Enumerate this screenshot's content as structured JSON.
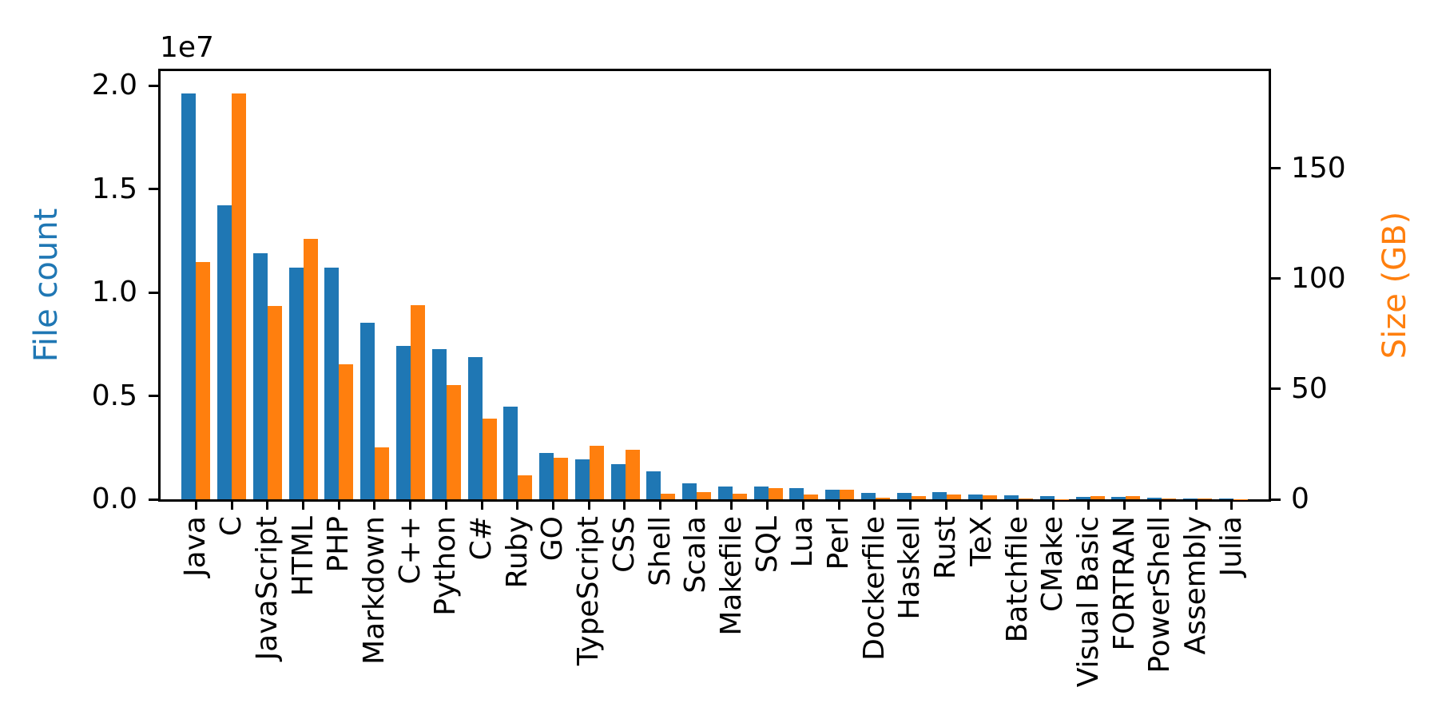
{
  "figure": {
    "background": "#ffffff"
  },
  "chart_data": {
    "type": "bar",
    "title": "",
    "grid": false,
    "legend": null,
    "categories": [
      "Java",
      "C",
      "JavaScript",
      "HTML",
      "PHP",
      "Markdown",
      "C++",
      "Python",
      "C#",
      "Ruby",
      "GO",
      "TypeScript",
      "CSS",
      "Shell",
      "Scala",
      "Makefile",
      "SQL",
      "Lua",
      "Perl",
      "Dockerfile",
      "Haskell",
      "Rust",
      "TeX",
      "Batchfile",
      "CMake",
      "Visual Basic",
      "FORTRAN",
      "PowerShell",
      "Assembly",
      "Julia"
    ],
    "series": [
      {
        "name": "File count",
        "axis": "left",
        "color": "#1f77b4",
        "unit": "files",
        "values": [
          19600000,
          14230000,
          11880000,
          11210000,
          11210000,
          8520000,
          7410000,
          7280000,
          6860000,
          4470000,
          2250000,
          1920000,
          1700000,
          1360000,
          780000,
          620000,
          600000,
          530000,
          460000,
          300000,
          310000,
          350000,
          240000,
          200000,
          150000,
          130000,
          100000,
          90000,
          40000,
          30000
        ]
      },
      {
        "name": "Size (GB)",
        "axis": "right",
        "color": "#ff7f0e",
        "unit": "GB",
        "values": [
          107.5,
          184,
          87.5,
          118,
          61,
          23.4,
          88,
          51.6,
          36.4,
          10.7,
          18.8,
          24.3,
          22.5,
          2.5,
          3.1,
          2.4,
          5.1,
          2.1,
          4.4,
          0.6,
          1.6,
          2.1,
          1.7,
          0.2,
          0.1,
          1.6,
          1.5,
          0.3,
          0.5,
          0.15
        ]
      }
    ],
    "axes": {
      "left": {
        "label": "File count",
        "color": "#1f77b4",
        "offset_text": "1e7",
        "tick_labels": [
          "0.0",
          "0.5",
          "1.0",
          "1.5",
          "2.0"
        ],
        "tick_values": [
          0,
          5000000,
          10000000,
          15000000,
          20000000
        ],
        "ylim": [
          0,
          20700000
        ]
      },
      "right": {
        "label": "Size (GB)",
        "color": "#ff7f0e",
        "tick_labels": [
          "0",
          "50",
          "100",
          "150"
        ],
        "tick_values": [
          0,
          50,
          100,
          150
        ],
        "ylim": [
          0,
          194
        ]
      }
    }
  }
}
